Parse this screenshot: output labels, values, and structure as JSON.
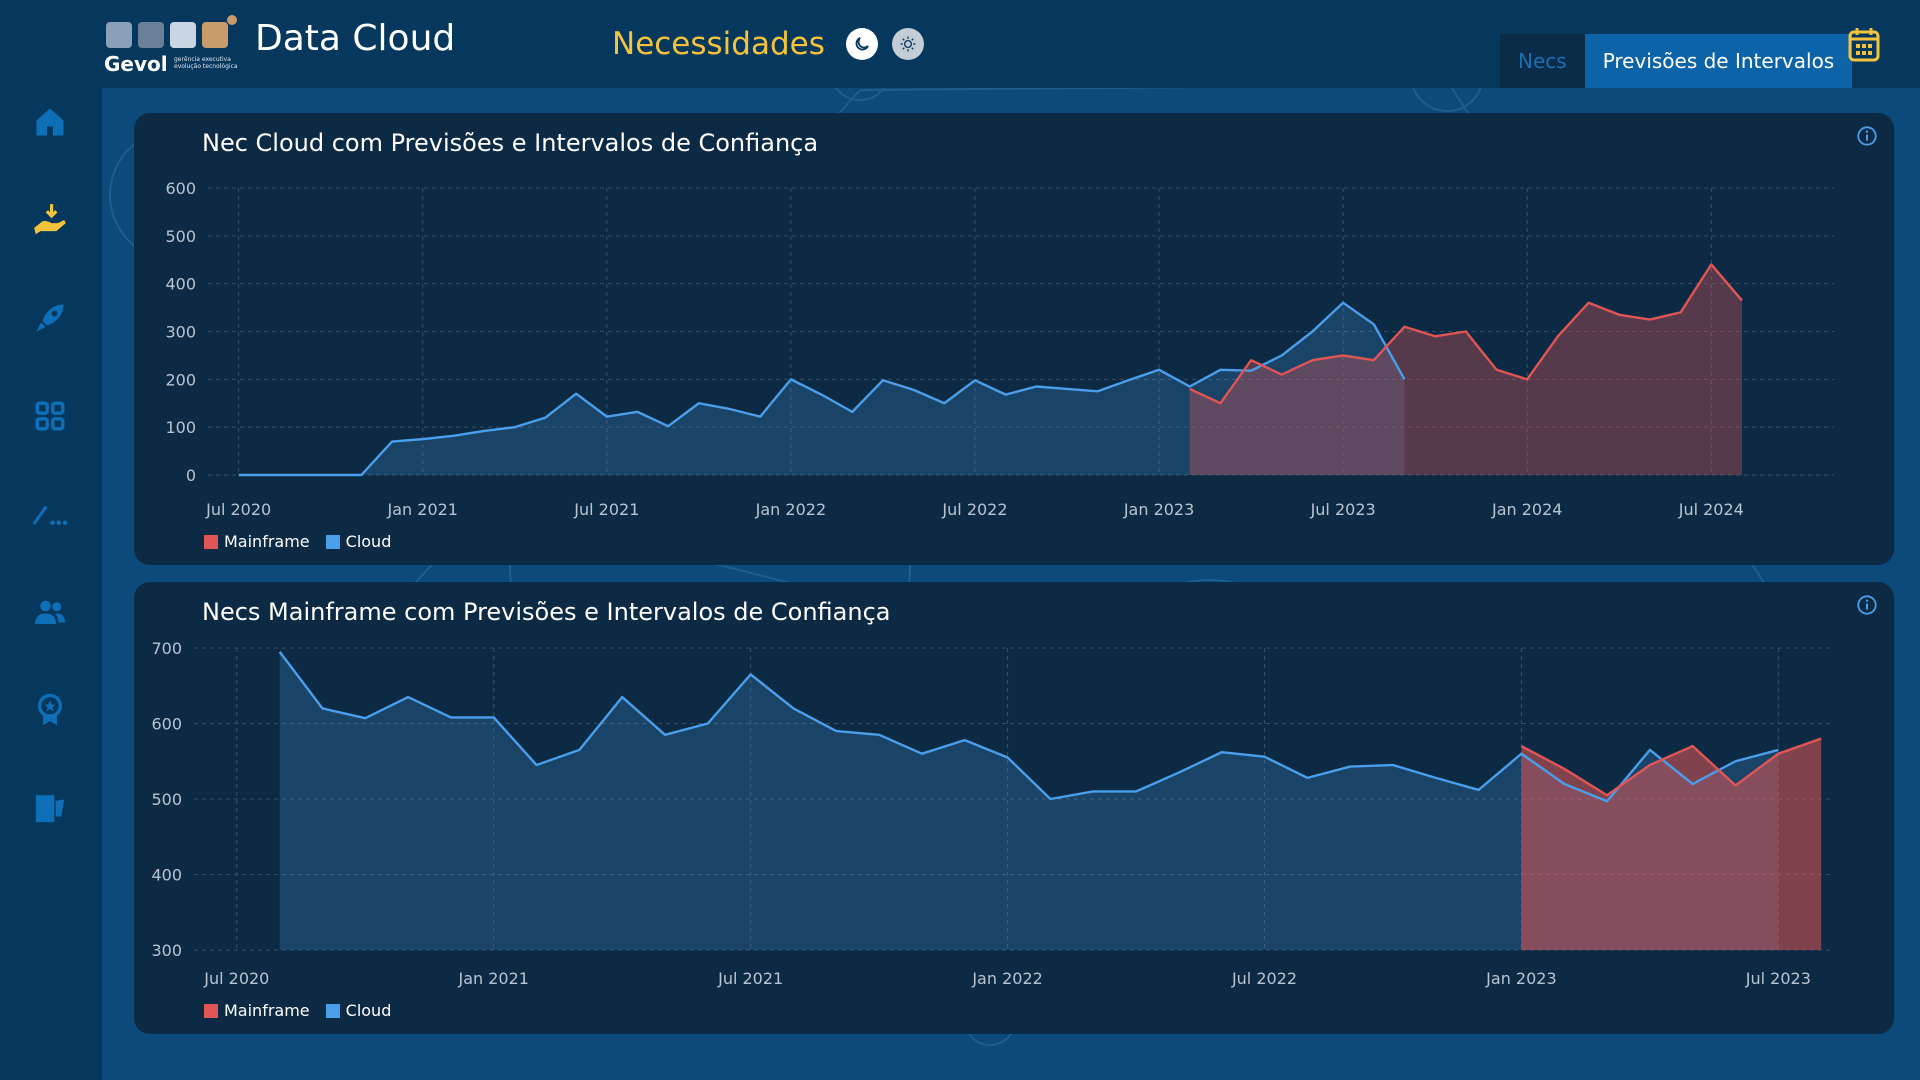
{
  "header": {
    "logo_word": "Gevol",
    "logo_tagline": "gerência executiva evolução tecnológica",
    "app_title": "Data Cloud",
    "page_title": "Necessidades",
    "tabs": [
      {
        "label": "Necs",
        "active": false
      },
      {
        "label": "Previsões de Intervalos",
        "active": true
      }
    ]
  },
  "sidebar": {
    "items": [
      {
        "icon": "home-icon",
        "active": false
      },
      {
        "icon": "hand-download-icon",
        "active": true
      },
      {
        "icon": "rocket-icon",
        "active": false
      },
      {
        "icon": "grid-icon",
        "active": false
      },
      {
        "icon": "chart-line-icon",
        "active": false
      },
      {
        "icon": "users-icon",
        "active": false
      },
      {
        "icon": "badge-icon",
        "active": false
      },
      {
        "icon": "logout-icon",
        "active": false
      }
    ]
  },
  "colors": {
    "accent": "#f5c33b",
    "mainframe": "#e05555",
    "cloud": "#4a9eea",
    "panel": "#0d2a44",
    "header": "#06385e"
  },
  "legend": {
    "mainframe": "Mainframe",
    "cloud": "Cloud"
  },
  "chart_data": [
    {
      "type": "line",
      "title": "Nec Cloud com Previsões e Intervalos de Confiança",
      "ylim": [
        0,
        600
      ],
      "yticks": [
        0,
        100,
        200,
        300,
        400,
        500,
        600
      ],
      "xticks": [
        "Jul 2020",
        "Jan 2021",
        "Jul 2021",
        "Jan 2022",
        "Jul 2022",
        "Jan 2023",
        "Jul 2023",
        "Jan 2024",
        "Jul 2024"
      ],
      "grid": true,
      "legend_position": "bottom-left",
      "series": [
        {
          "name": "Cloud",
          "color": "#4a9eea",
          "x": [
            "2020-07",
            "2020-08",
            "2020-09",
            "2020-10",
            "2020-11",
            "2020-12",
            "2021-01",
            "2021-02",
            "2021-03",
            "2021-04",
            "2021-05",
            "2021-06",
            "2021-07",
            "2021-08",
            "2021-09",
            "2021-10",
            "2021-11",
            "2021-12",
            "2022-01",
            "2022-02",
            "2022-03",
            "2022-04",
            "2022-05",
            "2022-06",
            "2022-07",
            "2022-08",
            "2022-09",
            "2022-10",
            "2022-11",
            "2022-12",
            "2023-01",
            "2023-02",
            "2023-03",
            "2023-04",
            "2023-05",
            "2023-06",
            "2023-07",
            "2023-08",
            "2023-09"
          ],
          "values": [
            0,
            0,
            0,
            0,
            0,
            70,
            75,
            82,
            92,
            100,
            120,
            170,
            122,
            132,
            102,
            150,
            138,
            122,
            200,
            168,
            132,
            198,
            178,
            150,
            198,
            168,
            185,
            180,
            175,
            198,
            220,
            185,
            220,
            218,
            250,
            300,
            360,
            315,
            200
          ]
        },
        {
          "name": "Mainframe",
          "color": "#e05555",
          "x": [
            "2023-02",
            "2023-03",
            "2023-04",
            "2023-05",
            "2023-06",
            "2023-07",
            "2023-08",
            "2023-09",
            "2023-10",
            "2023-11",
            "2023-12",
            "2024-01",
            "2024-02",
            "2024-03",
            "2024-04",
            "2024-05",
            "2024-06",
            "2024-07",
            "2024-08"
          ],
          "values": [
            180,
            150,
            240,
            210,
            240,
            250,
            240,
            310,
            290,
            300,
            220,
            200,
            290,
            360,
            335,
            325,
            340,
            440,
            365
          ]
        }
      ],
      "confidence_bands": [
        {
          "from": "2023-02",
          "to": "2023-09",
          "series": "Cloud"
        },
        {
          "from": "2023-02",
          "to": "2024-08",
          "series": "Mainframe"
        }
      ]
    },
    {
      "type": "line",
      "title": "Necs Mainframe com Previsões e Intervalos de Confiança",
      "ylim": [
        300,
        700
      ],
      "yticks": [
        300,
        400,
        500,
        600,
        700
      ],
      "xticks": [
        "Jul 2020",
        "Jan 2021",
        "Jul 2021",
        "Jan 2022",
        "Jul 2022",
        "Jan 2023",
        "Jul 2023"
      ],
      "grid": true,
      "legend_position": "bottom-left",
      "series": [
        {
          "name": "Cloud",
          "color": "#4a9eea",
          "x": [
            "2020-08",
            "2020-09",
            "2020-10",
            "2020-11",
            "2020-12",
            "2021-01",
            "2021-02",
            "2021-03",
            "2021-04",
            "2021-05",
            "2021-06",
            "2021-07",
            "2021-08",
            "2021-09",
            "2021-10",
            "2021-11",
            "2021-12",
            "2022-01",
            "2022-02",
            "2022-03",
            "2022-04",
            "2022-05",
            "2022-06",
            "2022-07",
            "2022-08",
            "2022-09",
            "2022-10",
            "2022-11",
            "2022-12",
            "2023-01",
            "2023-02",
            "2023-03",
            "2023-04",
            "2023-05",
            "2023-06",
            "2023-07"
          ],
          "values": [
            695,
            620,
            607,
            635,
            608,
            608,
            545,
            565,
            635,
            585,
            600,
            665,
            620,
            590,
            585,
            560,
            578,
            555,
            500,
            510,
            510,
            535,
            562,
            556,
            528,
            543,
            545,
            528,
            512,
            560,
            520,
            497,
            565,
            520,
            550,
            565
          ]
        },
        {
          "name": "Mainframe",
          "color": "#e05555",
          "x": [
            "2023-01",
            "2023-02",
            "2023-03",
            "2023-04",
            "2023-05",
            "2023-06",
            "2023-07",
            "2023-08"
          ],
          "values": [
            570,
            540,
            505,
            545,
            570,
            518,
            560,
            580
          ]
        }
      ],
      "confidence_bands": [
        {
          "from": "2023-01",
          "to": "2023-08",
          "series": "Mainframe"
        }
      ]
    }
  ]
}
